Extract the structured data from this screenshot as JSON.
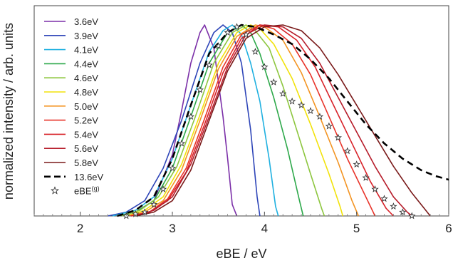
{
  "chart_data": {
    "type": "line",
    "xlabel": "eBE / eV",
    "ylabel": "normalized intensity / arb. units",
    "xlim": [
      1.5,
      6.0
    ],
    "ylim": [
      0,
      1.0
    ],
    "xticks": [
      2,
      3,
      4,
      5,
      6
    ],
    "grid": false,
    "legend_position": "top-left",
    "series": [
      {
        "name": "3.6eV",
        "color": "#7b2fa8",
        "dashed": false,
        "points": [
          [
            2.4,
            0
          ],
          [
            2.6,
            0.02
          ],
          [
            2.8,
            0.08
          ],
          [
            3.0,
            0.32
          ],
          [
            3.1,
            0.55
          ],
          [
            3.2,
            0.8
          ],
          [
            3.3,
            0.96
          ],
          [
            3.35,
            1.0
          ],
          [
            3.45,
            0.88
          ],
          [
            3.55,
            0.52
          ],
          [
            3.6,
            0.3
          ],
          [
            3.65,
            0.06
          ],
          [
            3.7,
            0
          ]
        ]
      },
      {
        "name": "3.9eV",
        "color": "#2e45b8",
        "dashed": false,
        "points": [
          [
            2.3,
            0
          ],
          [
            2.5,
            0.02
          ],
          [
            2.7,
            0.08
          ],
          [
            2.9,
            0.25
          ],
          [
            3.1,
            0.5
          ],
          [
            3.3,
            0.8
          ],
          [
            3.45,
            0.96
          ],
          [
            3.55,
            1.0
          ],
          [
            3.65,
            0.96
          ],
          [
            3.75,
            0.8
          ],
          [
            3.85,
            0.45
          ],
          [
            3.92,
            0.1
          ],
          [
            3.95,
            0
          ]
        ]
      },
      {
        "name": "4.1eV",
        "color": "#1fb0e0",
        "dashed": false,
        "points": [
          [
            2.35,
            0
          ],
          [
            2.6,
            0.03
          ],
          [
            2.8,
            0.1
          ],
          [
            3.0,
            0.3
          ],
          [
            3.2,
            0.58
          ],
          [
            3.4,
            0.86
          ],
          [
            3.55,
            0.97
          ],
          [
            3.65,
            1.0
          ],
          [
            3.75,
            0.95
          ],
          [
            3.85,
            0.8
          ],
          [
            3.95,
            0.6
          ],
          [
            4.05,
            0.3
          ],
          [
            4.12,
            0.05
          ],
          [
            4.15,
            0
          ]
        ]
      },
      {
        "name": "4.4eV",
        "color": "#2da84a",
        "dashed": false,
        "points": [
          [
            2.4,
            0
          ],
          [
            2.6,
            0.02
          ],
          [
            2.8,
            0.08
          ],
          [
            3.0,
            0.25
          ],
          [
            3.2,
            0.52
          ],
          [
            3.4,
            0.8
          ],
          [
            3.6,
            0.96
          ],
          [
            3.75,
            1.0
          ],
          [
            3.85,
            0.96
          ],
          [
            3.95,
            0.85
          ],
          [
            4.1,
            0.62
          ],
          [
            4.25,
            0.35
          ],
          [
            4.38,
            0.08
          ],
          [
            4.42,
            0
          ]
        ]
      },
      {
        "name": "4.6eV",
        "color": "#8dc63f",
        "dashed": false,
        "points": [
          [
            2.45,
            0
          ],
          [
            2.65,
            0.03
          ],
          [
            2.85,
            0.1
          ],
          [
            3.05,
            0.26
          ],
          [
            3.25,
            0.52
          ],
          [
            3.45,
            0.8
          ],
          [
            3.65,
            0.96
          ],
          [
            3.8,
            1.0
          ],
          [
            3.9,
            0.97
          ],
          [
            4.05,
            0.88
          ],
          [
            4.2,
            0.68
          ],
          [
            4.35,
            0.45
          ],
          [
            4.5,
            0.22
          ],
          [
            4.62,
            0.04
          ],
          [
            4.65,
            0
          ]
        ]
      },
      {
        "name": "4.8eV",
        "color": "#f2e20a",
        "dashed": false,
        "points": [
          [
            2.5,
            0
          ],
          [
            2.7,
            0.03
          ],
          [
            2.9,
            0.1
          ],
          [
            3.1,
            0.27
          ],
          [
            3.3,
            0.53
          ],
          [
            3.5,
            0.8
          ],
          [
            3.7,
            0.96
          ],
          [
            3.85,
            1.0
          ],
          [
            3.95,
            0.98
          ],
          [
            4.1,
            0.9
          ],
          [
            4.3,
            0.72
          ],
          [
            4.5,
            0.48
          ],
          [
            4.7,
            0.22
          ],
          [
            4.82,
            0.05
          ],
          [
            4.85,
            0
          ]
        ]
      },
      {
        "name": "5.0eV",
        "color": "#f39422",
        "dashed": false,
        "points": [
          [
            2.5,
            0
          ],
          [
            2.7,
            0.02
          ],
          [
            2.9,
            0.08
          ],
          [
            3.1,
            0.24
          ],
          [
            3.3,
            0.5
          ],
          [
            3.5,
            0.77
          ],
          [
            3.7,
            0.94
          ],
          [
            3.9,
            1.0
          ],
          [
            4.0,
            0.99
          ],
          [
            4.2,
            0.92
          ],
          [
            4.4,
            0.75
          ],
          [
            4.6,
            0.52
          ],
          [
            4.8,
            0.28
          ],
          [
            4.95,
            0.08
          ],
          [
            5.02,
            0
          ]
        ]
      },
      {
        "name": "5.2eV",
        "color": "#e8342a",
        "dashed": false,
        "points": [
          [
            2.55,
            0
          ],
          [
            2.75,
            0.02
          ],
          [
            2.95,
            0.09
          ],
          [
            3.15,
            0.25
          ],
          [
            3.35,
            0.51
          ],
          [
            3.55,
            0.78
          ],
          [
            3.75,
            0.95
          ],
          [
            3.95,
            1.0
          ],
          [
            4.1,
            0.98
          ],
          [
            4.3,
            0.9
          ],
          [
            4.5,
            0.74
          ],
          [
            4.7,
            0.52
          ],
          [
            4.9,
            0.3
          ],
          [
            5.1,
            0.1
          ],
          [
            5.2,
            0
          ]
        ]
      },
      {
        "name": "5.4eV",
        "color": "#d8232a",
        "dashed": false,
        "points": [
          [
            2.55,
            0
          ],
          [
            2.75,
            0.02
          ],
          [
            2.95,
            0.08
          ],
          [
            3.15,
            0.23
          ],
          [
            3.35,
            0.48
          ],
          [
            3.55,
            0.75
          ],
          [
            3.75,
            0.93
          ],
          [
            3.95,
            1.0
          ],
          [
            4.15,
            0.99
          ],
          [
            4.35,
            0.92
          ],
          [
            4.55,
            0.78
          ],
          [
            4.75,
            0.58
          ],
          [
            4.95,
            0.38
          ],
          [
            5.15,
            0.18
          ],
          [
            5.32,
            0.04
          ],
          [
            5.4,
            0
          ]
        ]
      },
      {
        "name": "5.6eV",
        "color": "#b61c2a",
        "dashed": false,
        "points": [
          [
            2.6,
            0
          ],
          [
            2.8,
            0.03
          ],
          [
            3.0,
            0.1
          ],
          [
            3.2,
            0.27
          ],
          [
            3.4,
            0.52
          ],
          [
            3.6,
            0.78
          ],
          [
            3.8,
            0.95
          ],
          [
            4.0,
            1.0
          ],
          [
            4.2,
            0.99
          ],
          [
            4.4,
            0.93
          ],
          [
            4.6,
            0.8
          ],
          [
            4.8,
            0.62
          ],
          [
            5.0,
            0.44
          ],
          [
            5.2,
            0.26
          ],
          [
            5.4,
            0.1
          ],
          [
            5.55,
            0.02
          ],
          [
            5.6,
            0
          ]
        ]
      },
      {
        "name": "5.8eV",
        "color": "#7a1a1a",
        "dashed": false,
        "points": [
          [
            2.6,
            0
          ],
          [
            2.8,
            0.02
          ],
          [
            3.0,
            0.08
          ],
          [
            3.2,
            0.24
          ],
          [
            3.4,
            0.5
          ],
          [
            3.6,
            0.76
          ],
          [
            3.8,
            0.93
          ],
          [
            4.0,
            0.99
          ],
          [
            4.2,
            1.0
          ],
          [
            4.4,
            0.97
          ],
          [
            4.6,
            0.88
          ],
          [
            4.8,
            0.74
          ],
          [
            5.0,
            0.58
          ],
          [
            5.2,
            0.42
          ],
          [
            5.4,
            0.26
          ],
          [
            5.6,
            0.12
          ],
          [
            5.75,
            0.03
          ],
          [
            5.8,
            0
          ]
        ]
      },
      {
        "name": "13.6eV",
        "color": "#000000",
        "dashed": true,
        "points": [
          [
            2.4,
            0
          ],
          [
            2.6,
            0.03
          ],
          [
            2.8,
            0.1
          ],
          [
            3.0,
            0.3
          ],
          [
            3.2,
            0.58
          ],
          [
            3.4,
            0.85
          ],
          [
            3.6,
            0.96
          ],
          [
            3.75,
            1.0
          ],
          [
            3.9,
            0.99
          ],
          [
            4.1,
            0.95
          ],
          [
            4.3,
            0.9
          ],
          [
            4.5,
            0.82
          ],
          [
            4.7,
            0.72
          ],
          [
            4.9,
            0.6
          ],
          [
            5.1,
            0.48
          ],
          [
            5.3,
            0.38
          ],
          [
            5.5,
            0.3
          ],
          [
            5.7,
            0.24
          ],
          [
            5.85,
            0.21
          ],
          [
            6.0,
            0.19
          ]
        ]
      }
    ],
    "markers": {
      "name": "eBE",
      "name_superscript": "(g)",
      "symbol": "star",
      "points": [
        [
          2.5,
          0.0
        ],
        [
          2.6,
          0.01
        ],
        [
          2.7,
          0.02
        ],
        [
          2.8,
          0.06
        ],
        [
          2.9,
          0.14
        ],
        [
          3.0,
          0.25
        ],
        [
          3.1,
          0.38
        ],
        [
          3.2,
          0.52
        ],
        [
          3.3,
          0.66
        ],
        [
          3.4,
          0.79
        ],
        [
          3.5,
          0.89
        ],
        [
          3.6,
          0.96
        ],
        [
          3.7,
          0.99
        ],
        [
          3.8,
          0.95
        ],
        [
          3.9,
          0.86
        ],
        [
          4.0,
          0.78
        ],
        [
          4.1,
          0.7
        ],
        [
          4.2,
          0.64
        ],
        [
          4.3,
          0.6
        ],
        [
          4.4,
          0.58
        ],
        [
          4.5,
          0.55
        ],
        [
          4.6,
          0.52
        ],
        [
          4.7,
          0.47
        ],
        [
          4.8,
          0.41
        ],
        [
          4.9,
          0.34
        ],
        [
          5.0,
          0.27
        ],
        [
          5.1,
          0.2
        ],
        [
          5.2,
          0.14
        ],
        [
          5.3,
          0.09
        ],
        [
          5.4,
          0.05
        ],
        [
          5.5,
          0.02
        ],
        [
          5.6,
          0.0
        ]
      ]
    }
  }
}
